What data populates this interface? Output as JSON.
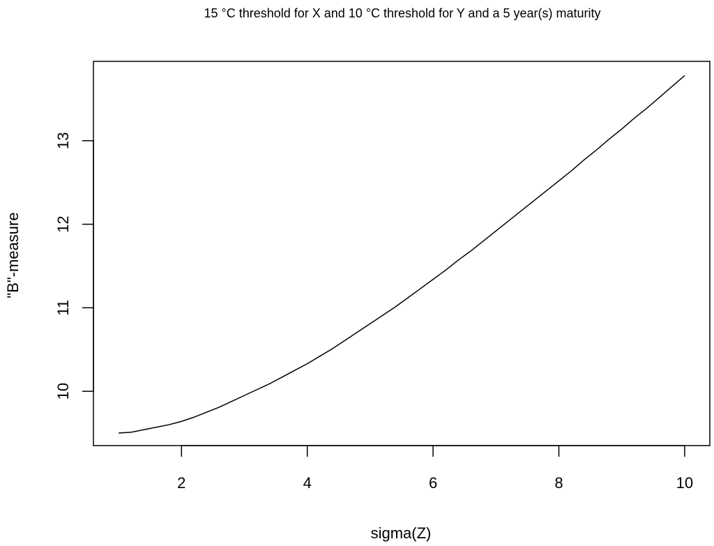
{
  "chart_data": {
    "type": "line",
    "title": "15 °C threshold for X and  10 °C threshold for Y and a  5 year(s) maturity",
    "xlabel": "sigma(Z)",
    "ylabel": "\"B\"-measure",
    "xlim": [
      0.6,
      10.4
    ],
    "ylim": [
      9.35,
      13.95
    ],
    "x_ticks": [
      2,
      4,
      6,
      8,
      10
    ],
    "y_ticks": [
      10,
      11,
      12,
      13
    ],
    "x_tick_labels": [
      "2",
      "4",
      "6",
      "8",
      "10"
    ],
    "y_tick_labels": [
      "10",
      "11",
      "12",
      "13"
    ],
    "grid": false,
    "series": [
      {
        "color": "#000000",
        "x": [
          1.0,
          1.2,
          1.4,
          1.6,
          1.8,
          2.0,
          2.2,
          2.4,
          2.6,
          2.8,
          3.0,
          3.2,
          3.4,
          3.6,
          3.8,
          4.0,
          4.2,
          4.4,
          4.6,
          4.8,
          5.0,
          5.2,
          5.4,
          5.6,
          5.8,
          6.0,
          6.2,
          6.4,
          6.6,
          6.8,
          7.0,
          7.2,
          7.4,
          7.6,
          7.8,
          8.0,
          8.2,
          8.4,
          8.6,
          8.8,
          9.0,
          9.2,
          9.4,
          9.6,
          9.8,
          10.0
        ],
        "y": [
          9.5,
          9.51,
          9.54,
          9.57,
          9.6,
          9.64,
          9.69,
          9.75,
          9.81,
          9.88,
          9.95,
          10.02,
          10.09,
          10.17,
          10.25,
          10.33,
          10.42,
          10.51,
          10.61,
          10.71,
          10.81,
          10.91,
          11.01,
          11.12,
          11.23,
          11.34,
          11.45,
          11.57,
          11.68,
          11.8,
          11.92,
          12.04,
          12.16,
          12.28,
          12.4,
          12.52,
          12.64,
          12.77,
          12.89,
          13.02,
          13.14,
          13.27,
          13.39,
          13.52,
          13.65,
          13.78
        ]
      }
    ]
  }
}
